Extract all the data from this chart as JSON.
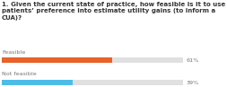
{
  "title_line1": "1. Given the current state of practice, how feasible is it to use",
  "title_line2": "patients’ preference into estimate utility gains (to inform a",
  "title_line3": "CUA)?",
  "categories": [
    "Feasible",
    "Not feasible"
  ],
  "values": [
    61,
    39
  ],
  "bar_colors": [
    "#E8622A",
    "#4DBDE8"
  ],
  "bg_color": "#FFFFFF",
  "bar_bg_color": "#E0E0E0",
  "text_color": "#777777",
  "title_color": "#333333",
  "title_fontsize": 5.0,
  "label_fontsize": 4.6,
  "pct_fontsize": 4.6,
  "fig_width": 2.4,
  "fig_height": 1.06
}
